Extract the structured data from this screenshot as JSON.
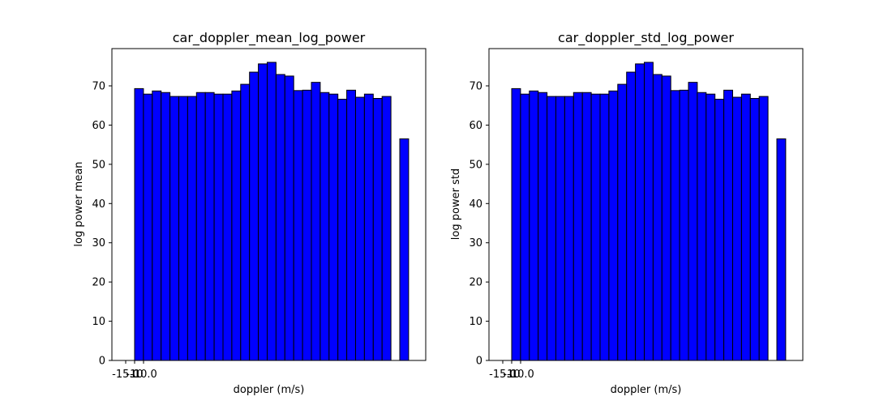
{
  "chart_data": [
    {
      "type": "bar",
      "title": "car_doppler_mean_log_power",
      "xlabel": "doppler (m/s)",
      "ylabel": "log power mean",
      "x_tick_labels": [
        "-15.0",
        "-10",
        "-10.0"
      ],
      "y_ticks": [
        0,
        10,
        20,
        30,
        40,
        50,
        60,
        70
      ],
      "ylim": [
        0,
        79.5
      ],
      "grid": false,
      "bar_color": "#0000ff",
      "edge_color": "#000000",
      "values": [
        69.3,
        67.9,
        68.7,
        68.3,
        67.3,
        67.3,
        67.3,
        68.3,
        68.3,
        67.9,
        67.9,
        68.7,
        70.4,
        73.5,
        75.6,
        76.0,
        72.9,
        72.5,
        68.8,
        68.9,
        70.9,
        68.3,
        67.9,
        66.6,
        68.9,
        67.1,
        67.9,
        66.8,
        67.3,
        null,
        56.5
      ]
    },
    {
      "type": "bar",
      "title": "car_doppler_std_log_power",
      "xlabel": "doppler (m/s)",
      "ylabel": "log power std",
      "x_tick_labels": [
        "-15.0",
        "-10",
        "-10.0"
      ],
      "y_ticks": [
        0,
        10,
        20,
        30,
        40,
        50,
        60,
        70
      ],
      "ylim": [
        0,
        79.5
      ],
      "grid": false,
      "bar_color": "#0000ff",
      "edge_color": "#000000",
      "values": [
        69.3,
        67.9,
        68.7,
        68.3,
        67.3,
        67.3,
        67.3,
        68.3,
        68.3,
        67.9,
        67.9,
        68.7,
        70.4,
        73.5,
        75.6,
        76.0,
        72.9,
        72.5,
        68.8,
        68.9,
        70.9,
        68.3,
        67.9,
        66.6,
        68.9,
        67.1,
        67.9,
        66.8,
        67.3,
        null,
        56.5
      ]
    }
  ]
}
